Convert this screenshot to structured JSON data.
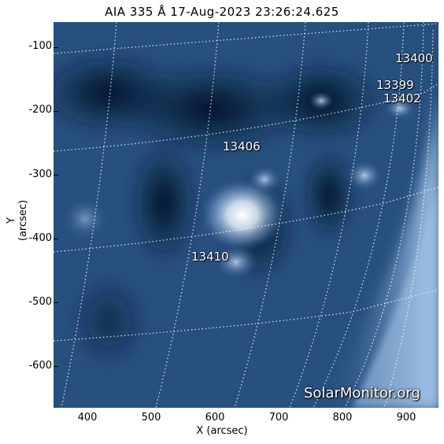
{
  "title": "AIA 335 Å 17-Aug-2023 23:26:24.625",
  "axes": {
    "xlabel": "X (arcsec)",
    "ylabel": "Y (arcsec)",
    "xticks": [
      "400",
      "500",
      "600",
      "700",
      "800",
      "900"
    ],
    "yticks": [
      "-100",
      "-200",
      "-300",
      "-400",
      "-500",
      "-600"
    ]
  },
  "regions": [
    {
      "id": "r13400",
      "label": "13400"
    },
    {
      "id": "r13399",
      "label": "13399"
    },
    {
      "id": "r13402",
      "label": "13402"
    },
    {
      "id": "r13406",
      "label": "13406"
    },
    {
      "id": "r13410",
      "label": "13410"
    }
  ],
  "watermark": "SolarMonitor.org",
  "colors": {
    "image_base": "#1e3f6a",
    "bright_region": "#ffffff",
    "limb_glow": "#9fc4e8",
    "grid": "#ffffff"
  }
}
